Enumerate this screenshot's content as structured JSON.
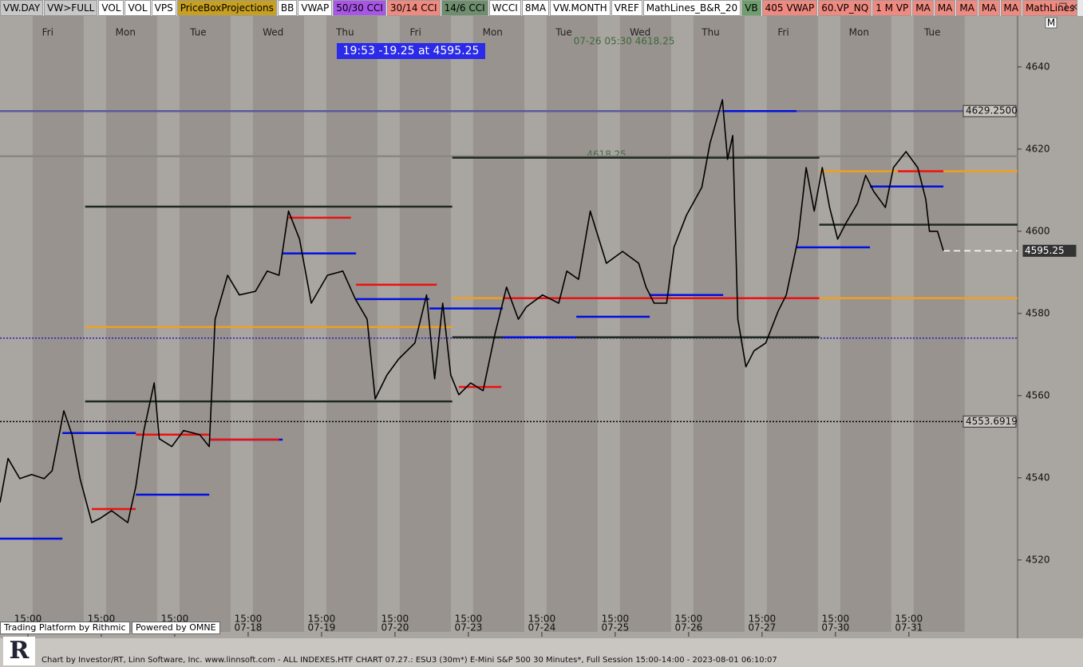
{
  "toolbar": [
    {
      "label": "VW.DAY",
      "color": "#c8c8c8"
    },
    {
      "label": "VW>FULL",
      "color": "#c8c8c8"
    },
    {
      "label": "VOL",
      "color": "#ffffff"
    },
    {
      "label": "VOL",
      "color": "#ffffff"
    },
    {
      "label": "VPS",
      "color": "#ffffff"
    },
    {
      "label": "PriceBoxProjections",
      "color": "#c8a020"
    },
    {
      "label": "BB",
      "color": "#ffffff"
    },
    {
      "label": "VWAP",
      "color": "#ffffff"
    },
    {
      "label": "50/30 CCI",
      "color": "#a855e8"
    },
    {
      "label": "30/14 CCI",
      "color": "#f08a80"
    },
    {
      "label": "14/6 CCI",
      "color": "#6e8e6e"
    },
    {
      "label": "WCCI",
      "color": "#ffffff"
    },
    {
      "label": "8MA",
      "color": "#ffffff"
    },
    {
      "label": "VW.MONTH",
      "color": "#ffffff"
    },
    {
      "label": "VREF",
      "color": "#ffffff"
    },
    {
      "label": "MathLines_B&R_20",
      "color": "#ffffff"
    },
    {
      "label": "VB",
      "color": "#6e9e6e"
    },
    {
      "label": "405 VWAP",
      "color": "#f08a80"
    },
    {
      "label": "60.VP_NQ",
      "color": "#f08a80"
    },
    {
      "label": "1 M VP",
      "color": "#f08a80"
    },
    {
      "label": "MA",
      "color": "#f08a80"
    },
    {
      "label": "MA",
      "color": "#f08a80"
    },
    {
      "label": "MA",
      "color": "#f08a80"
    },
    {
      "label": "MA",
      "color": "#f08a80"
    },
    {
      "label": "MA",
      "color": "#f08a80"
    },
    {
      "label": "MathLines",
      "color": "#f08a80"
    }
  ],
  "chart_data": {
    "type": "line",
    "quote_box": "19:53  -19.25 at 4595.25",
    "cursor_label": "07-26 05:30  4618.25",
    "level_annotation": "4618.25",
    "x": [
      -0.38,
      -0.27,
      -0.11,
      0.05,
      0.22,
      0.33,
      0.49,
      0.6,
      0.71,
      0.87,
      0.98,
      1.14,
      1.36,
      1.47,
      1.58,
      1.72,
      1.79,
      1.96,
      2.12,
      2.34,
      2.47,
      2.55,
      2.72,
      2.88,
      3.1,
      3.26,
      3.42,
      3.55,
      3.7,
      3.86,
      4.08,
      4.29,
      4.46,
      4.62,
      4.73,
      4.89,
      5.05,
      5.27,
      5.43,
      5.54,
      5.65,
      5.76,
      5.87,
      6.03,
      6.2,
      6.36,
      6.52,
      6.68,
      6.79,
      7.01,
      7.23,
      7.34,
      7.5,
      7.66,
      7.88,
      8.1,
      8.32,
      8.42,
      8.53,
      8.7,
      8.8,
      8.97,
      9.18,
      9.29,
      9.46,
      9.53,
      9.6,
      9.67,
      9.78,
      9.89,
      10.05,
      10.22,
      10.33,
      10.49,
      10.6,
      10.71,
      10.82,
      10.92,
      11.03,
      11.14,
      11.3,
      11.41,
      11.52,
      11.68,
      11.79,
      11.96,
      12.12,
      12.23,
      12.28,
      12.39,
      12.47
    ],
    "series": [
      {
        "color": "#000000",
        "values": [
          4534.0,
          4544.7,
          4539.8,
          4540.8,
          4539.8,
          4541.7,
          4556.3,
          4550.5,
          4539.8,
          4529.1,
          4530.1,
          4532.0,
          4529.1,
          4537.9,
          4551.5,
          4563.1,
          4549.5,
          4547.6,
          4551.5,
          4550.5,
          4547.6,
          4578.6,
          4589.3,
          4584.5,
          4585.4,
          4590.3,
          4589.3,
          4604.9,
          4598.1,
          4582.5,
          4589.3,
          4590.3,
          4583.5,
          4578.6,
          4559.2,
          4565.0,
          4568.9,
          4572.8,
          4584.5,
          4564.1,
          4582.5,
          4565.0,
          4560.2,
          4563.1,
          4561.2,
          4574.8,
          4586.4,
          4578.6,
          4581.6,
          4584.5,
          4582.5,
          4590.3,
          4588.3,
          4604.9,
          4592.2,
          4595.1,
          4592.2,
          4586.4,
          4582.5,
          4582.5,
          4596.1,
          4603.9,
          4610.7,
          4621.4,
          4632.0,
          4617.5,
          4623.3,
          4578.6,
          4567.0,
          4570.9,
          4572.8,
          4580.6,
          4584.5,
          4598.1,
          4615.5,
          4604.9,
          4615.5,
          4605.8,
          4598.1,
          4601.9,
          4606.8,
          4613.6,
          4609.7,
          4605.8,
          4615.5,
          4619.4,
          4615.5,
          4607.8,
          4600.0,
          4600.0,
          4595.25
        ]
      }
    ],
    "xlim": [
      -0.38,
      13.48
    ],
    "ylim": [
      4502.5,
      4652.4
    ],
    "yticks": [
      4520,
      4540,
      4560,
      4580,
      4600,
      4620,
      4640
    ],
    "xticks": [
      {
        "value": 0,
        "label": "15:00"
      },
      {
        "value": 1,
        "label": "15:00"
      },
      {
        "value": 2,
        "label": "15:00"
      },
      {
        "value": 3,
        "label": "15:00",
        "date": "07-18"
      },
      {
        "value": 4,
        "label": "15:00",
        "date": "07-19"
      },
      {
        "value": 5,
        "label": "15:00",
        "date": "07-20"
      },
      {
        "value": 6,
        "label": "15:00",
        "date": "07-23"
      },
      {
        "value": 7,
        "label": "15:00",
        "date": "07-24"
      },
      {
        "value": 8,
        "label": "15:00",
        "date": "07-25"
      },
      {
        "value": 9,
        "label": "15:00",
        "date": "07-26"
      },
      {
        "value": 10,
        "label": "15:00",
        "date": "07-27"
      },
      {
        "value": 11,
        "label": "15:00",
        "date": "07-30"
      },
      {
        "value": 12,
        "label": "15:00",
        "date": "07-31"
      }
    ],
    "day_ticks": [
      {
        "value": 0.27,
        "label": "Fri"
      },
      {
        "value": 1.33,
        "label": "Mon"
      },
      {
        "value": 2.32,
        "label": "Tue"
      },
      {
        "value": 3.34,
        "label": "Wed"
      },
      {
        "value": 4.32,
        "label": "Thu"
      },
      {
        "value": 5.28,
        "label": "Fri"
      },
      {
        "value": 6.33,
        "label": "Mon"
      },
      {
        "value": 7.3,
        "label": "Tue"
      },
      {
        "value": 8.34,
        "label": "Wed"
      },
      {
        "value": 9.3,
        "label": "Thu"
      },
      {
        "value": 10.29,
        "label": "Fri"
      },
      {
        "value": 11.32,
        "label": "Mon"
      },
      {
        "value": 12.32,
        "label": "Tue"
      }
    ],
    "levels": [
      {
        "value": 4629.25,
        "from": -0.38,
        "to": 13.48,
        "color": "#5a5aa0",
        "style": "solid",
        "label": "4629.2500"
      },
      {
        "value": 4618.25,
        "from": -0.38,
        "to": 13.48,
        "color": "#8a8682",
        "style": "solid"
      },
      {
        "value": 4553.6919,
        "from": -0.38,
        "to": 13.48,
        "color": "#000000",
        "style": "dotted",
        "label": "4553.6919"
      },
      {
        "value": 4574.0,
        "from": -0.38,
        "to": 13.48,
        "color": "#3020c0",
        "style": "dotted"
      },
      {
        "value": 4595.25,
        "from": 12.47,
        "to": 13.48,
        "color": "#ffffff",
        "style": "dashed",
        "label": "4595.25"
      },
      {
        "value": 4606.0,
        "from": 0.78,
        "to": 5.78,
        "color": "#1e2a1e",
        "style": "solid"
      },
      {
        "value": 4558.6,
        "from": 0.78,
        "to": 5.78,
        "color": "#1e2a1e",
        "style": "solid"
      },
      {
        "value": 4576.7,
        "from": 0.78,
        "to": 5.78,
        "color": "#f0a020",
        "style": "solid"
      },
      {
        "value": 4617.9,
        "from": 5.78,
        "to": 10.78,
        "color": "#1e2a1e",
        "style": "solid"
      },
      {
        "value": 4574.2,
        "from": 5.78,
        "to": 10.78,
        "color": "#1e2a1e",
        "style": "solid"
      },
      {
        "value": 4583.7,
        "from": 5.78,
        "to": 13.48,
        "color": "#f0a020",
        "style": "solid"
      },
      {
        "value": 4601.6,
        "from": 10.78,
        "to": 13.48,
        "color": "#1e2a1e",
        "style": "solid"
      },
      {
        "value": 4614.6,
        "from": 10.78,
        "to": 13.48,
        "color": "#f0a020",
        "style": "solid"
      },
      {
        "value": 4525.2,
        "from": -0.38,
        "to": 0.47,
        "color": "#0010e0",
        "style": "solid"
      },
      {
        "value": 4550.9,
        "from": 0.47,
        "to": 1.47,
        "color": "#0010e0",
        "style": "solid"
      },
      {
        "value": 4535.9,
        "from": 1.47,
        "to": 2.47,
        "color": "#0010e0",
        "style": "solid"
      },
      {
        "value": 4549.3,
        "from": 2.47,
        "to": 3.47,
        "color": "#0010e0",
        "style": "solid"
      },
      {
        "value": 4594.6,
        "from": 3.47,
        "to": 4.47,
        "color": "#0010e0",
        "style": "solid"
      },
      {
        "value": 4583.5,
        "from": 4.47,
        "to": 5.47,
        "color": "#0010e0",
        "style": "solid"
      },
      {
        "value": 4581.2,
        "from": 5.47,
        "to": 6.47,
        "color": "#0010e0",
        "style": "solid"
      },
      {
        "value": 4574.2,
        "from": 6.47,
        "to": 7.47,
        "color": "#0010e0",
        "style": "solid"
      },
      {
        "value": 4579.2,
        "from": 7.47,
        "to": 8.47,
        "color": "#0010e0",
        "style": "solid"
      },
      {
        "value": 4584.5,
        "from": 8.47,
        "to": 9.47,
        "color": "#0010e0",
        "style": "solid"
      },
      {
        "value": 4629.25,
        "from": 9.47,
        "to": 10.47,
        "color": "#0010e0",
        "style": "solid"
      },
      {
        "value": 4596.1,
        "from": 10.47,
        "to": 11.47,
        "color": "#0010e0",
        "style": "solid"
      },
      {
        "value": 4610.9,
        "from": 11.47,
        "to": 12.47,
        "color": "#0010e0",
        "style": "solid"
      },
      {
        "value": 4532.4,
        "from": 0.87,
        "to": 1.47,
        "color": "#ee1010",
        "style": "solid"
      },
      {
        "value": 4550.5,
        "from": 1.47,
        "to": 2.47,
        "color": "#ee1010",
        "style": "solid"
      },
      {
        "value": 4549.3,
        "from": 2.47,
        "to": 3.42,
        "color": "#ee1010",
        "style": "solid"
      },
      {
        "value": 4603.3,
        "from": 3.55,
        "to": 4.4,
        "color": "#ee1010",
        "style": "solid"
      },
      {
        "value": 4587.0,
        "from": 4.47,
        "to": 5.57,
        "color": "#ee1010",
        "style": "solid"
      },
      {
        "value": 4562.1,
        "from": 5.87,
        "to": 6.45,
        "color": "#ee1010",
        "style": "solid"
      },
      {
        "value": 4583.7,
        "from": 6.47,
        "to": 10.78,
        "color": "#ee1010",
        "style": "solid"
      },
      {
        "value": 4614.6,
        "from": 11.85,
        "to": 12.47,
        "color": "#ee1010",
        "style": "solid"
      }
    ]
  },
  "logos": [
    "Trading Platform by Rithmic",
    "Powered by OMNE"
  ],
  "footer": "Chart by Investor/RT, Linn Software, Inc. www.linnsoft.com - ALL INDEXES.HTF CHART   07.27.: ESU3 (30m*) E-Mini S&P 500 30 Minutes*, Full Session 15:00-14:00 - 2023-08-01 06:10:07"
}
